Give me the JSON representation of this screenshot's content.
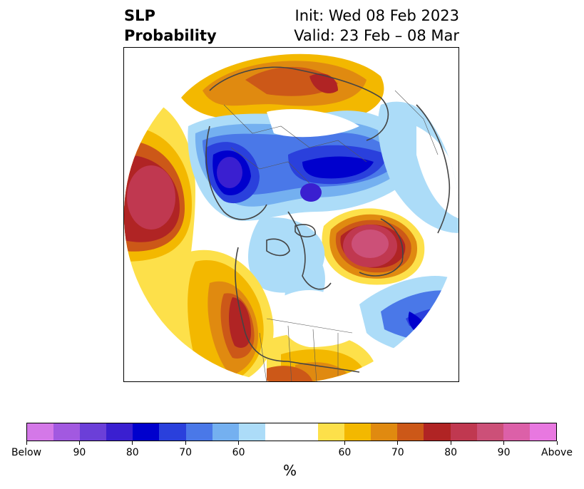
{
  "title": {
    "left_line1": "SLP",
    "left_line2": "Probability",
    "right_line1": "Init: Wed 08 Feb 2023",
    "right_line2": "Valid: 23 Feb – 08 Mar"
  },
  "map": {
    "projection": "north-polar-stereographic",
    "features": [
      "coastlines",
      "country-borders",
      "us-state-borders"
    ]
  },
  "colorbar": {
    "colors": [
      "#d478e8",
      "#a259e0",
      "#6b3fd8",
      "#3a1fd0",
      "#0000cd",
      "#2a40dc",
      "#4a78e8",
      "#74b0f0",
      "#acdcf8",
      "#ffffff",
      "#ffffff",
      "#fde04a",
      "#f3b800",
      "#e08a10",
      "#cc5818",
      "#b02424",
      "#c03850",
      "#cc5078",
      "#dc60a8",
      "#e878e0"
    ],
    "labels": [
      "Below",
      "90",
      "80",
      "70",
      "60",
      "60",
      "70",
      "80",
      "90",
      "Above"
    ],
    "unit": "%"
  }
}
